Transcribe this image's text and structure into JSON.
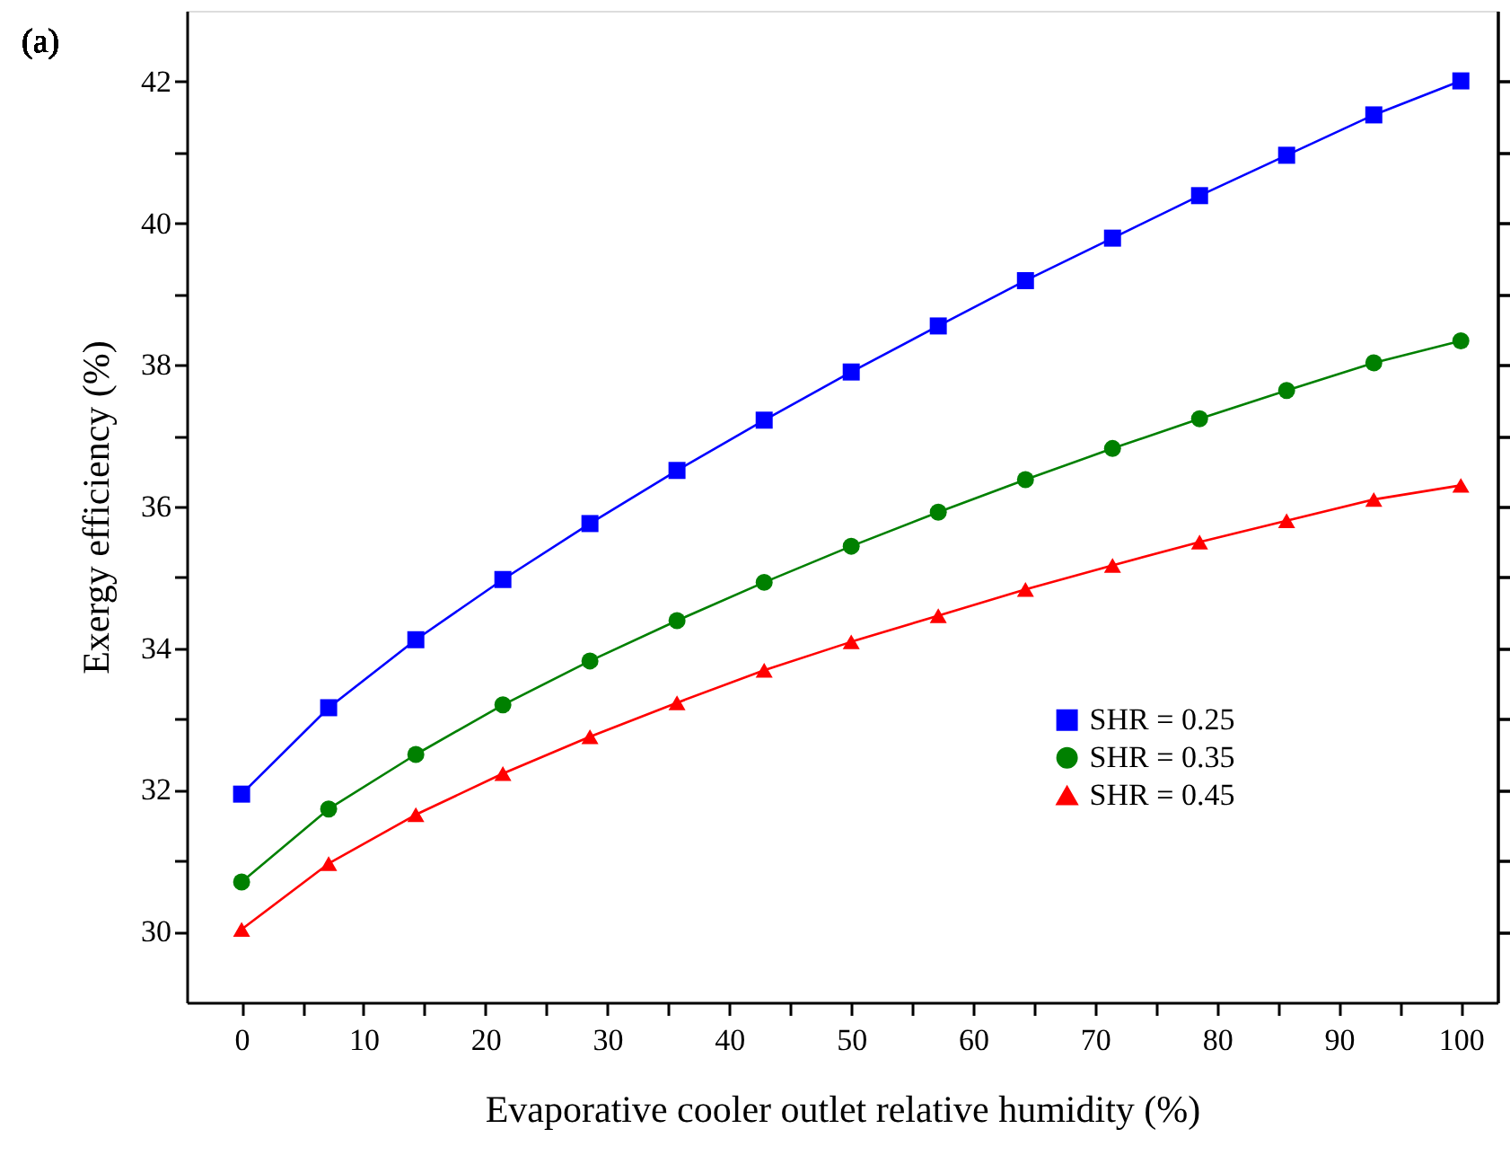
{
  "chart_data": {
    "type": "line",
    "xlabel": "Evaporative cooler outlet relative humidity (%)",
    "ylabel": "Exergy efficiency (%)",
    "annotations": [
      "(a)"
    ],
    "x": [
      0,
      7.14,
      14.29,
      21.43,
      28.57,
      35.71,
      42.86,
      50,
      57.14,
      64.29,
      71.43,
      78.57,
      85.71,
      92.86,
      100
    ],
    "series": [
      {
        "name": "SHR = 0.25",
        "color": "#0000ff",
        "marker": "square",
        "values": [
          31.94,
          33.16,
          34.12,
          34.97,
          35.76,
          36.51,
          37.22,
          37.9,
          38.55,
          39.19,
          39.79,
          40.39,
          40.96,
          41.53,
          42.01
        ]
      },
      {
        "name": "SHR = 0.35",
        "color": "#008000",
        "marker": "circle",
        "values": [
          30.7,
          31.73,
          32.5,
          33.2,
          33.82,
          34.39,
          34.93,
          35.44,
          35.92,
          36.38,
          36.82,
          37.24,
          37.64,
          38.03,
          38.34
        ]
      },
      {
        "name": "SHR = 0.45",
        "color": "#ff0000",
        "marker": "triangle",
        "values": [
          30.03,
          30.96,
          31.65,
          32.23,
          32.75,
          33.23,
          33.69,
          34.09,
          34.46,
          34.83,
          35.17,
          35.5,
          35.8,
          36.1,
          36.3
        ]
      }
    ],
    "xlim": [
      -4.5,
      103
    ],
    "ylim": [
      29,
      43
    ],
    "xticks": [
      0,
      {
        "value": 5,
        "label": null
      },
      10,
      {
        "value": 15,
        "label": null
      },
      20,
      {
        "value": 25,
        "label": null
      },
      30,
      {
        "value": 35,
        "label": null
      },
      40,
      {
        "value": 45,
        "label": null
      },
      50,
      {
        "value": 55,
        "label": null
      },
      60,
      {
        "value": 65,
        "label": null
      },
      70,
      {
        "value": 75,
        "label": null
      },
      80,
      {
        "value": 85,
        "label": null
      },
      90,
      {
        "value": 95,
        "label": null
      },
      100
    ],
    "yticks": [
      30,
      {
        "value": 31,
        "label": null
      },
      32,
      {
        "value": 33,
        "label": null
      },
      34,
      {
        "value": 35,
        "label": null
      },
      36,
      {
        "value": 37,
        "label": null
      },
      38,
      {
        "value": 39,
        "label": null
      },
      40,
      {
        "value": 41,
        "label": null
      },
      42
    ],
    "legend": "bottom right",
    "grid": false,
    "line_style": "solid"
  }
}
